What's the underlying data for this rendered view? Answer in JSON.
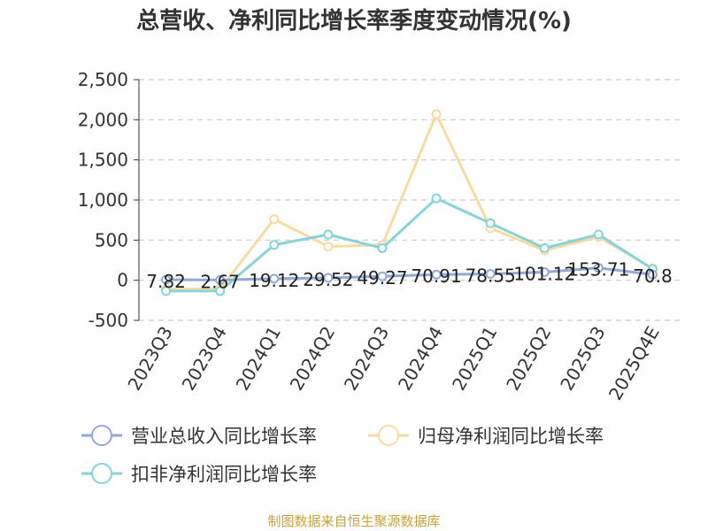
{
  "chart_data": {
    "type": "line",
    "title": "总营收、净利同比增长率季度变动情况(%)",
    "source_note": "制图数据来自恒生聚源数据库",
    "categories": [
      "2023Q3",
      "2023Q4",
      "2024Q1",
      "2024Q2",
      "2024Q3",
      "2024Q4",
      "2025Q1",
      "2025Q2",
      "2025Q3",
      "2025Q4E"
    ],
    "ylim": [
      -500,
      2500
    ],
    "yticks": [
      -500,
      0,
      500,
      1000,
      1500,
      2000,
      2500
    ],
    "ytick_labels": [
      "-500",
      "0",
      "500",
      "1,000",
      "1,500",
      "2,000",
      "2,500"
    ],
    "grid": true,
    "legend_position": "bottom",
    "series": [
      {
        "name": "营业总收入同比增长率",
        "color": "#8fa9d8",
        "values": [
          7.82,
          2.67,
          19.12,
          29.52,
          49.27,
          70.91,
          78.55,
          101.12,
          153.71,
          70.8
        ],
        "labels": [
          "7.82",
          "2.67",
          "19.12",
          "29.52",
          "49.27",
          "70.91",
          "78.55",
          "101.12",
          "153.71",
          "70.8"
        ]
      },
      {
        "name": "归母净利润同比增长率",
        "color": "#f8dba0",
        "values": [
          -110,
          -110,
          760,
          420,
          440,
          2070,
          650,
          370,
          540,
          150
        ]
      },
      {
        "name": "扣非净利润同比增长率",
        "color": "#86d3d8",
        "values": [
          -135,
          -135,
          440,
          570,
          400,
          1020,
          710,
          400,
          570,
          140
        ]
      }
    ]
  }
}
